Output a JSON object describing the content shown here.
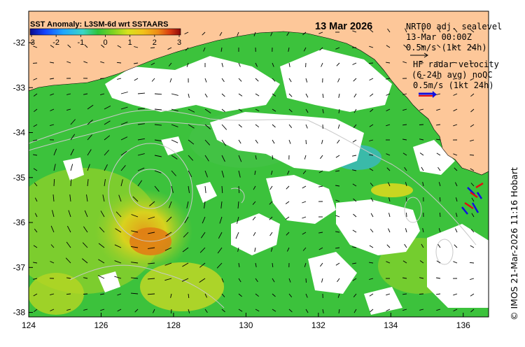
{
  "title": {
    "cbar_title": "SST Anomaly: L3SM-6d wrt SSTAARS",
    "date": "13 Mar 2026"
  },
  "colorbar": {
    "ticks": [
      "-3",
      "-2",
      "-1",
      "0",
      "1",
      "2",
      "3"
    ],
    "colors": [
      "#0a0a8c",
      "#1444ff",
      "#1fa6ff",
      "#39d6c8",
      "#2ec43a",
      "#7ed321",
      "#d8e21e",
      "#f2c21a",
      "#ee8b18",
      "#d93b12",
      "#8c0a0a"
    ]
  },
  "legend": {
    "sealevel_line1": "NRT00 adj. sealevel",
    "sealevel_line2": "13-Mar 00:00Z",
    "sealevel_line3": "0.5m/s (1kt 24h)",
    "radar_line1": "HF radar velocity",
    "radar_line2": "(6-24h avg) noQC",
    "radar_line3": "0.5m/s (1kt 24h)"
  },
  "axes": {
    "x_ticks": [
      "124",
      "126",
      "128",
      "130",
      "132",
      "134",
      "136"
    ],
    "y_ticks": [
      "-32",
      "-33",
      "-34",
      "-35",
      "-36",
      "-37",
      "-38"
    ],
    "lon_range": [
      124,
      136.7
    ],
    "lat_range": [
      -38.1,
      -31.3
    ]
  },
  "credit": "© IMOS 21-Mar-2026 11:16 Hobart",
  "colors": {
    "land": "#fdc799",
    "no_data": "#ffffff",
    "contour": "#c8c8c8",
    "radar_red": "#e01010",
    "radar_blue": "#1010e0"
  }
}
